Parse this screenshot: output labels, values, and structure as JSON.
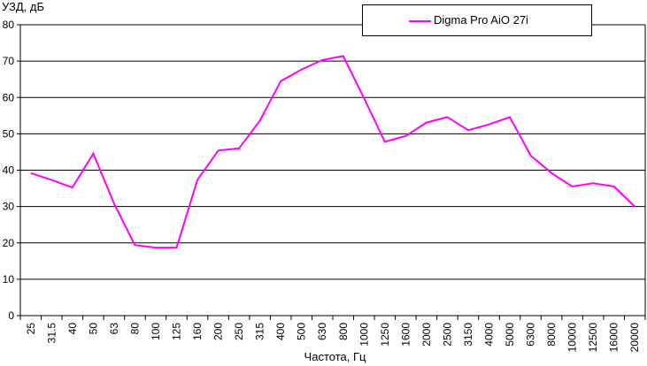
{
  "chart_data": {
    "type": "line",
    "ylabel": "УЗД, дБ",
    "xlabel": "Частота, Гц",
    "categories": [
      "25",
      "31.5",
      "40",
      "50",
      "63",
      "80",
      "100",
      "125",
      "160",
      "200",
      "250",
      "315",
      "400",
      "500",
      "630",
      "800",
      "1000",
      "1250",
      "1600",
      "2000",
      "2500",
      "3150",
      "4000",
      "5000",
      "6300",
      "8000",
      "10000",
      "12500",
      "16000",
      "20000"
    ],
    "series": [
      {
        "name": "Digma Pro AiO 27i",
        "color": "#ff00ff",
        "values": [
          39.2,
          37.3,
          35.2,
          44.6,
          30.8,
          19.4,
          18.7,
          18.7,
          37.3,
          45.4,
          46.0,
          53.6,
          64.5,
          67.7,
          70.3,
          71.4,
          59.8,
          47.8,
          49.4,
          53.1,
          54.6,
          51.0,
          52.6,
          54.6,
          44.0,
          39.2,
          35.5,
          36.4,
          35.5,
          30.0
        ]
      }
    ],
    "ylim": [
      0,
      80
    ],
    "yticks": [
      0,
      10,
      20,
      30,
      40,
      50,
      60,
      70,
      80
    ],
    "grid": true,
    "legend_position": "top-right"
  }
}
